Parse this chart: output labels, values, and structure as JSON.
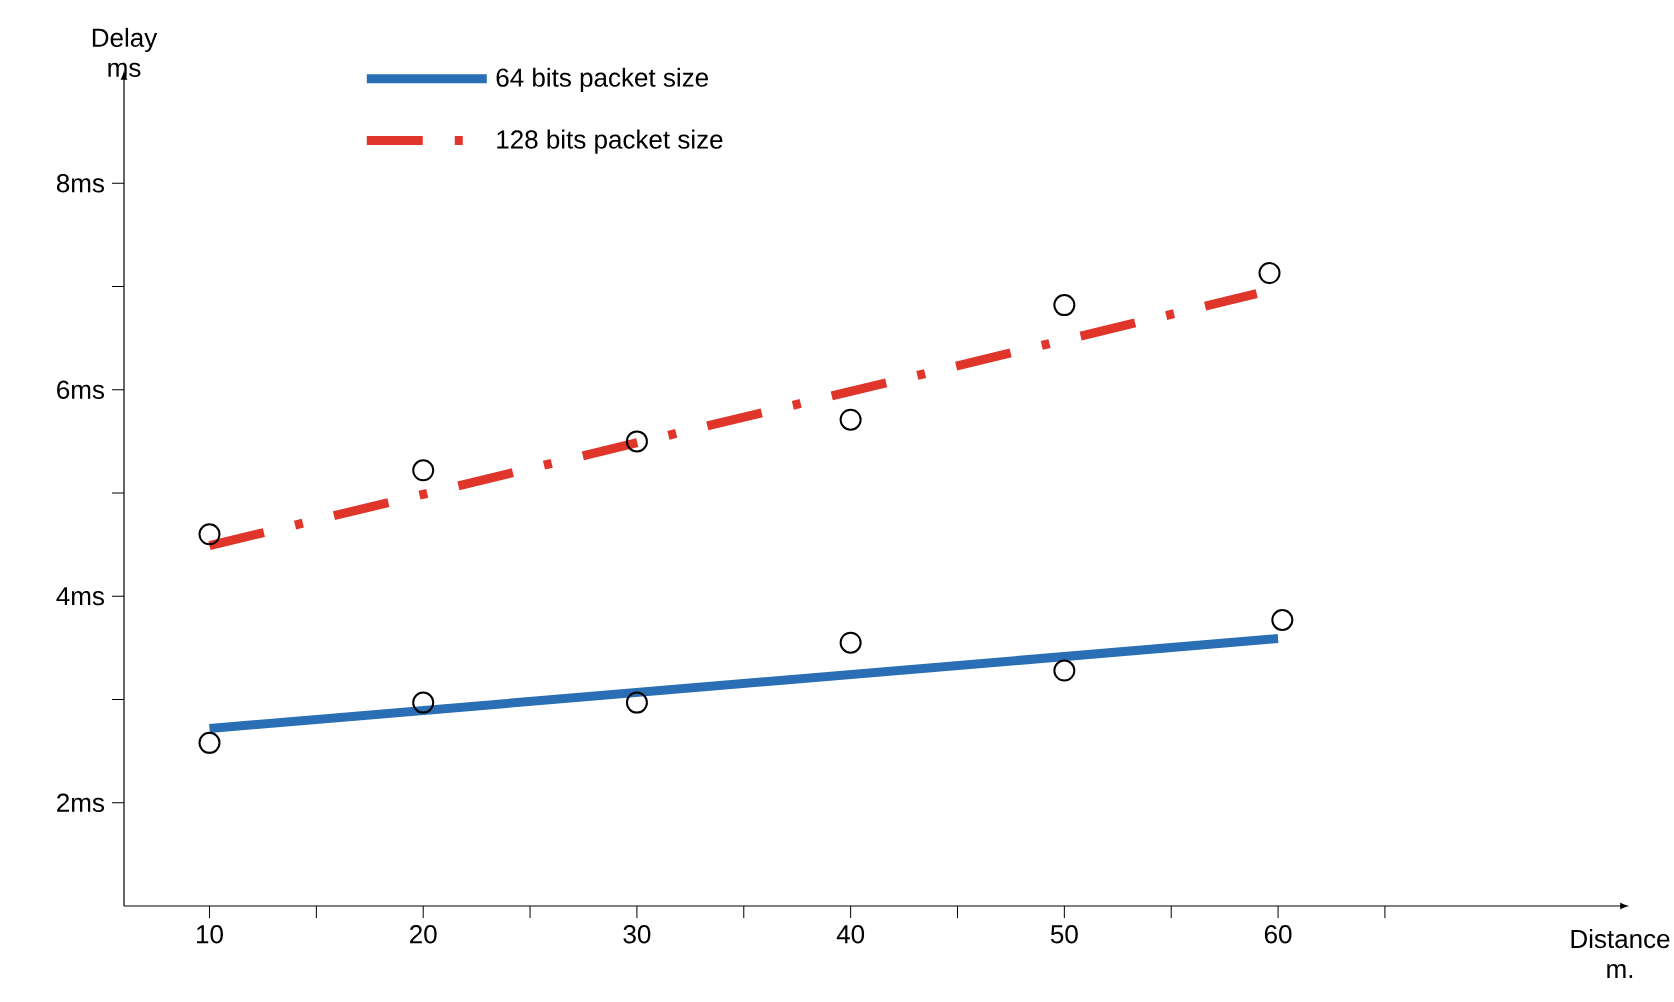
{
  "chart_data": {
    "type": "line",
    "xlabel": "Distance\nm.",
    "ylabel": "Delay\nms",
    "xlim": [
      6,
      76
    ],
    "ylim": [
      1,
      9
    ],
    "xticks": [
      10,
      {
        "value": 15,
        "label": null
      },
      20,
      {
        "value": 25,
        "label": null
      },
      30,
      {
        "value": 35,
        "label": null
      },
      40,
      {
        "value": 45,
        "label": null
      },
      50,
      {
        "value": 55,
        "label": null
      },
      60,
      {
        "value": 65,
        "label": null
      }
    ],
    "yticks": [
      {
        "value": 2,
        "label": "2ms"
      },
      {
        "value": 3,
        "label": null
      },
      {
        "value": 4,
        "label": "4ms"
      },
      {
        "value": 5,
        "label": null
      },
      {
        "value": 6,
        "label": "6ms"
      },
      {
        "value": 7,
        "label": null
      },
      {
        "value": 8,
        "label": "8ms"
      }
    ],
    "grid": false,
    "legend": "top left",
    "series": [
      {
        "name": "64 bits packet size",
        "color": "#2a6fb5",
        "line_style": "solid",
        "marker": "none",
        "x": [
          10,
          60
        ],
        "values": [
          2.72,
          3.59
        ]
      },
      {
        "name": "128 bits packet size",
        "color": "#e0352b",
        "line_style": "dashed",
        "marker": "none",
        "x": [
          10,
          59
        ],
        "values": [
          4.49,
          6.93
        ]
      },
      {
        "type": "scatter",
        "color": "#000000",
        "marker": "circle",
        "x": [
          10,
          20,
          30,
          40,
          50,
          60.2
        ],
        "values": [
          2.58,
          2.97,
          2.97,
          3.55,
          3.28,
          3.77
        ]
      },
      {
        "type": "scatter",
        "color": "#000000",
        "marker": "circle",
        "x": [
          10,
          20,
          30,
          40,
          50,
          59.6
        ],
        "values": [
          4.6,
          5.22,
          5.5,
          5.71,
          6.82,
          7.13
        ]
      }
    ]
  }
}
